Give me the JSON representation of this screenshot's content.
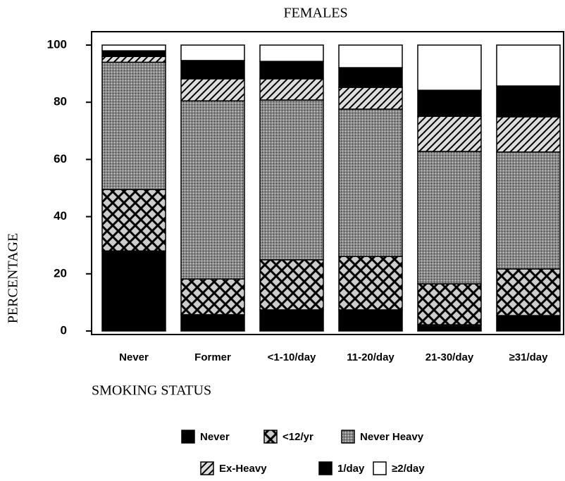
{
  "chart_data": {
    "type": "stacked_bar",
    "title": "FEMALES",
    "xlabel": "SMOKING STATUS",
    "ylabel": "PERCENTAGE",
    "categories": [
      "Never",
      "Former",
      "<1-10/day",
      "11-20/day",
      "21-30/day",
      "≥31/day"
    ],
    "ylim": [
      0,
      100
    ],
    "yticks": [
      0,
      20,
      40,
      60,
      80,
      100
    ],
    "series": [
      {
        "name": "Never",
        "color": "#000000",
        "pattern": "solid",
        "values": [
          28,
          5.7,
          7.4,
          7.4,
          2.2,
          5.4
        ]
      },
      {
        "name": "<12/yr",
        "color": "#000000",
        "pattern": "cross",
        "values": [
          21.5,
          12.5,
          17.5,
          18.7,
          14.3,
          16.3
        ]
      },
      {
        "name": "Never Heavy",
        "color": "#000000",
        "pattern": "stipple",
        "values": [
          44.5,
          62.3,
          55.9,
          51.5,
          46.3,
          40.9
        ]
      },
      {
        "name": "Ex-Heavy",
        "color": "#000000",
        "pattern": "hatch",
        "values": [
          2,
          7.7,
          7.4,
          7.6,
          12.3,
          12.3
        ]
      },
      {
        "name": "1/day",
        "color": "#000000",
        "pattern": "solid",
        "values": [
          2,
          6.4,
          6.1,
          6.9,
          9.1,
          10.8
        ]
      },
      {
        "name": "≥2/day",
        "color": "#ffffff",
        "pattern": "solid",
        "values": [
          2,
          5.4,
          5.7,
          7.9,
          15.8,
          14.3
        ]
      }
    ]
  }
}
